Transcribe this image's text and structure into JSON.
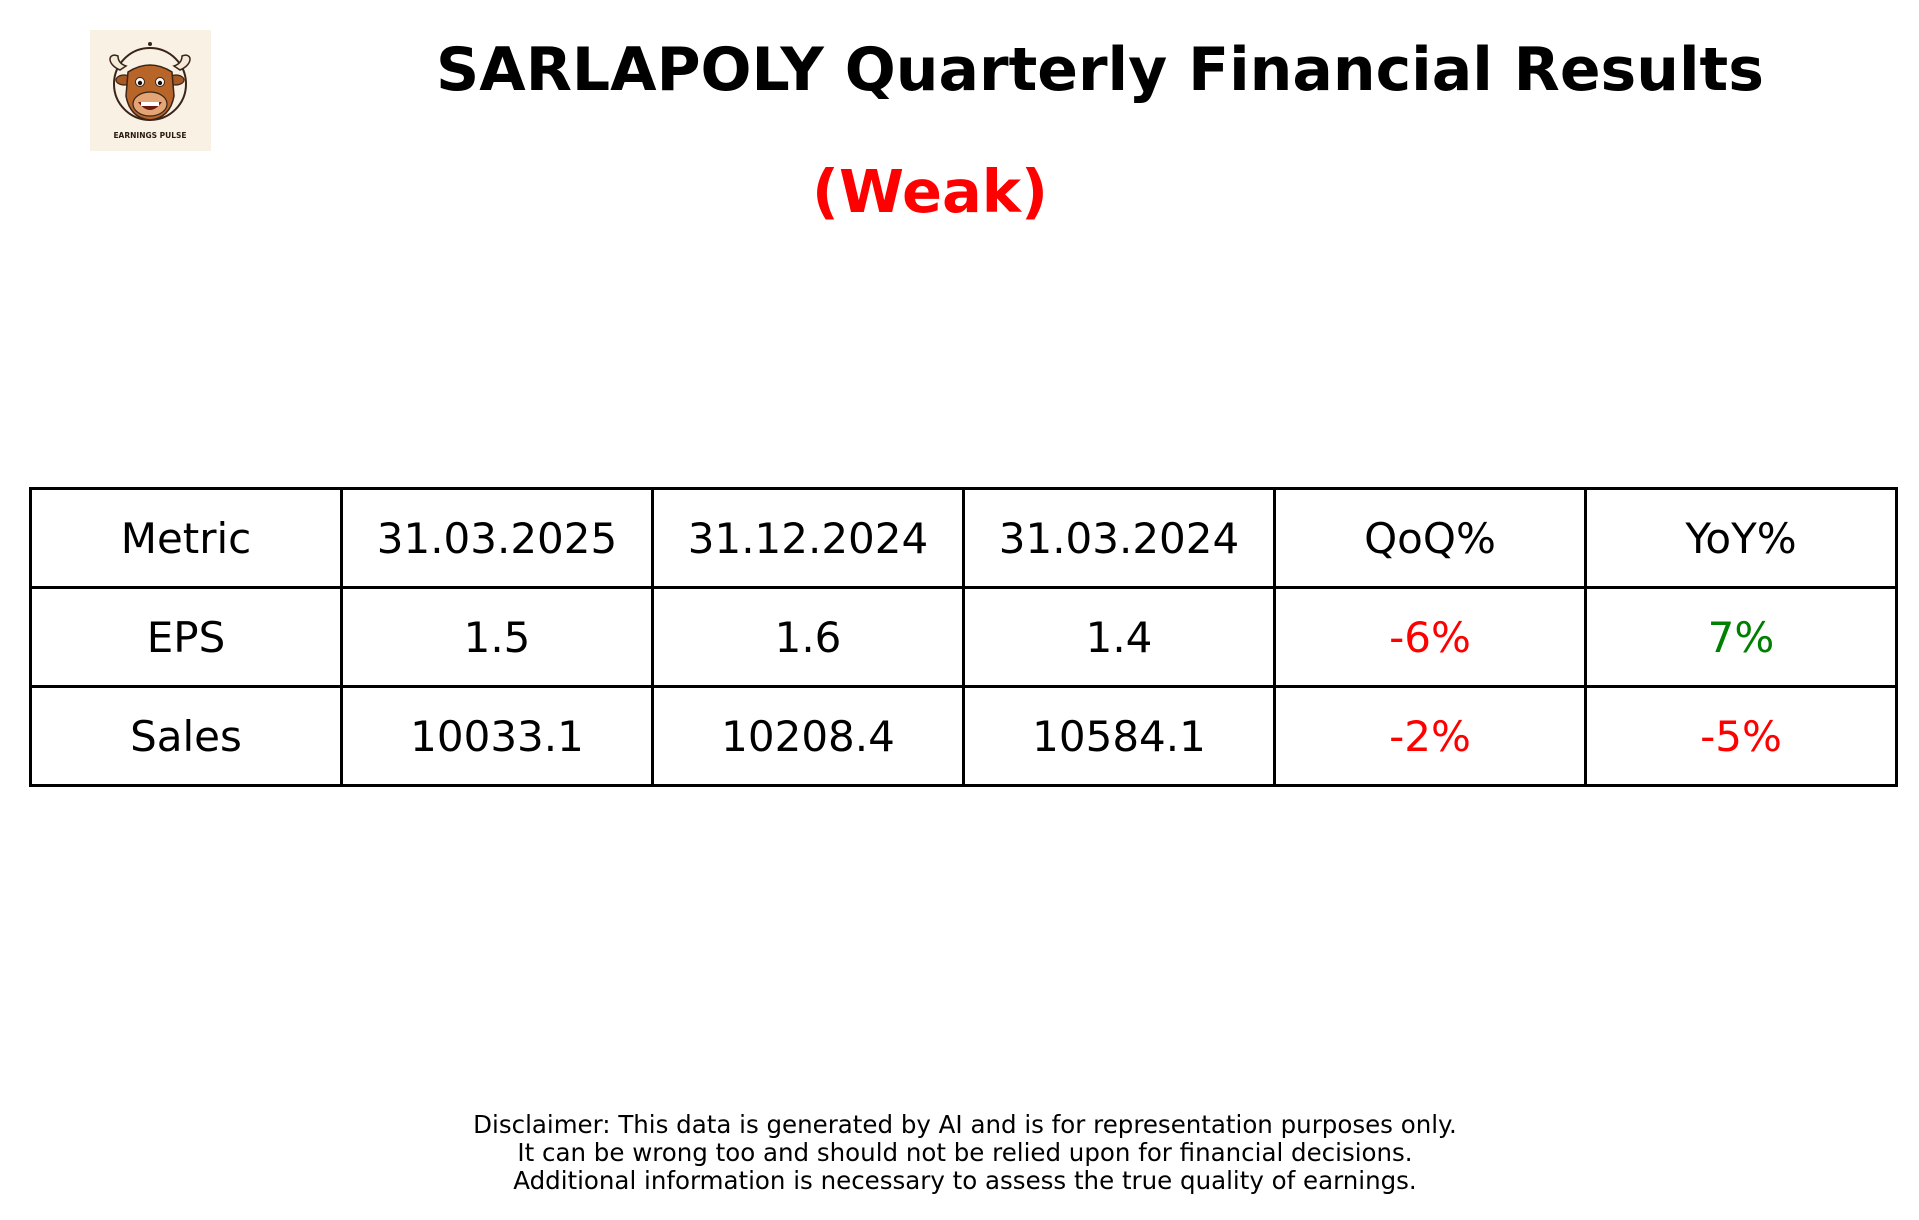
{
  "header": {
    "title": "SARLAPOLY Quarterly Financial Results",
    "subtitle": "(Weak)",
    "subtitle_color": "#ff0000",
    "logo": {
      "icon": "bull-face-icon",
      "text": "EARNINGS PULSE"
    }
  },
  "chart_data": {
    "type": "table",
    "columns": [
      "Metric",
      "31.03.2025",
      "31.12.2024",
      "31.03.2024",
      "QoQ%",
      "YoY%"
    ],
    "rows": [
      {
        "cells": [
          "EPS",
          "1.5",
          "1.6",
          "1.4",
          "-6%",
          "7%"
        ],
        "colors": [
          "#000000",
          "#000000",
          "#000000",
          "#000000",
          "#ff0000",
          "#008000"
        ]
      },
      {
        "cells": [
          "Sales",
          "10033.1",
          "10208.4",
          "10584.1",
          "-2%",
          "-5%"
        ],
        "colors": [
          "#000000",
          "#000000",
          "#000000",
          "#000000",
          "#ff0000",
          "#ff0000"
        ]
      }
    ]
  },
  "footer": {
    "disclaimer_lines": [
      "Disclaimer: This data is generated by AI and is for representation purposes only.",
      "It can be wrong too and should not be relied upon for financial decisions.",
      "Additional information is necessary to assess the true quality of earnings."
    ]
  }
}
